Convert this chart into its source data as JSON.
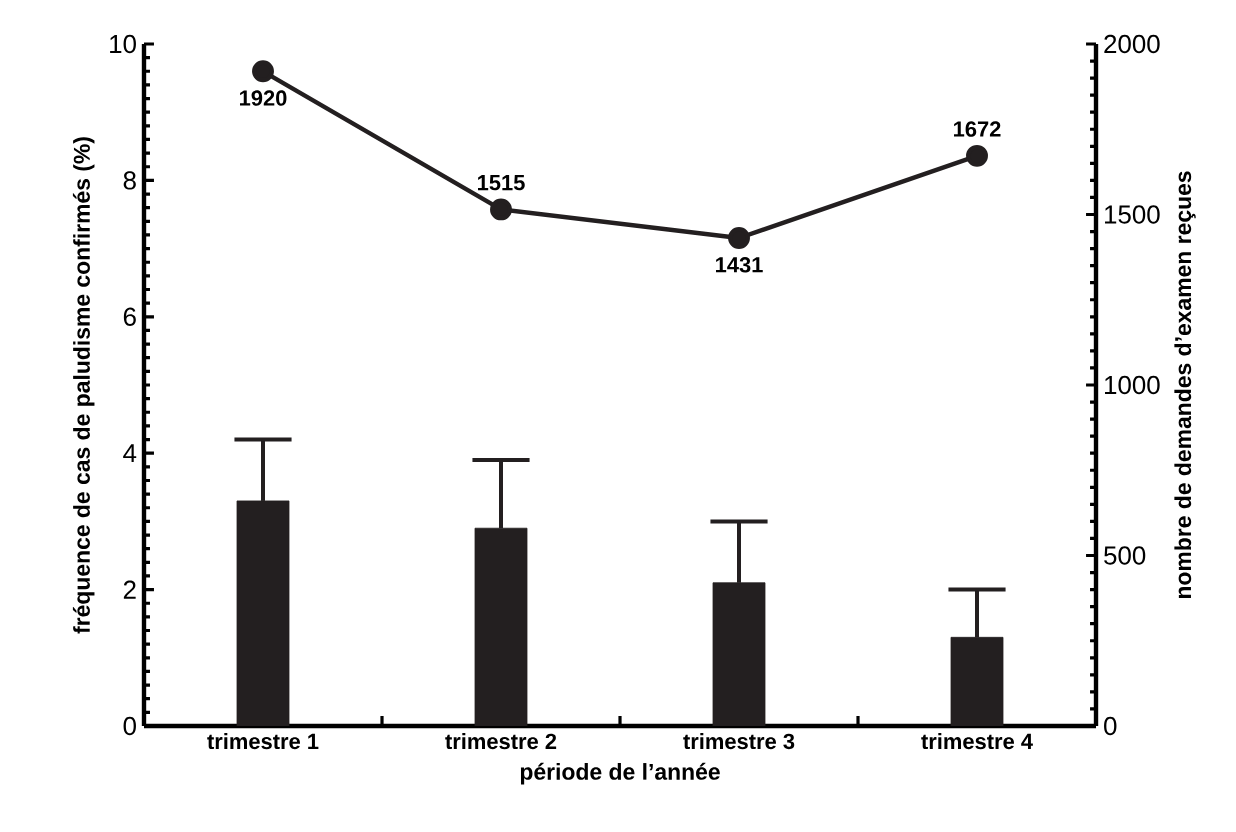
{
  "chart_data": {
    "type": "bar",
    "xlabel": "période de l’année",
    "ylabel": "fréquence de cas de paludisme confirmés (%)",
    "y2label": "nombre de demandes d’examen reçues",
    "categories": [
      "trimestre 1",
      "trimestre 2",
      "trimestre 3",
      "trimestre 4"
    ],
    "series": [
      {
        "type": "bar",
        "color": "#231f20",
        "values": [
          3.3,
          2.9,
          2.1,
          1.3
        ],
        "errors": [
          [
            3.3,
            4.2
          ],
          [
            2.9,
            3.9
          ],
          [
            2.1,
            3.0
          ],
          [
            1.3,
            2.0
          ]
        ]
      },
      {
        "type": "line",
        "axis": "y2",
        "color": "#231f20",
        "marker": "circle",
        "data_labels": true,
        "values": [
          1920,
          1515,
          1431,
          1672
        ]
      }
    ],
    "ylim": [
      0,
      10
    ],
    "yticks": [
      0,
      2,
      4,
      6,
      8,
      10
    ],
    "y2lim": [
      0,
      2000
    ],
    "y2ticks": [
      0,
      500,
      1000,
      1500,
      2000
    ],
    "grid": false
  }
}
